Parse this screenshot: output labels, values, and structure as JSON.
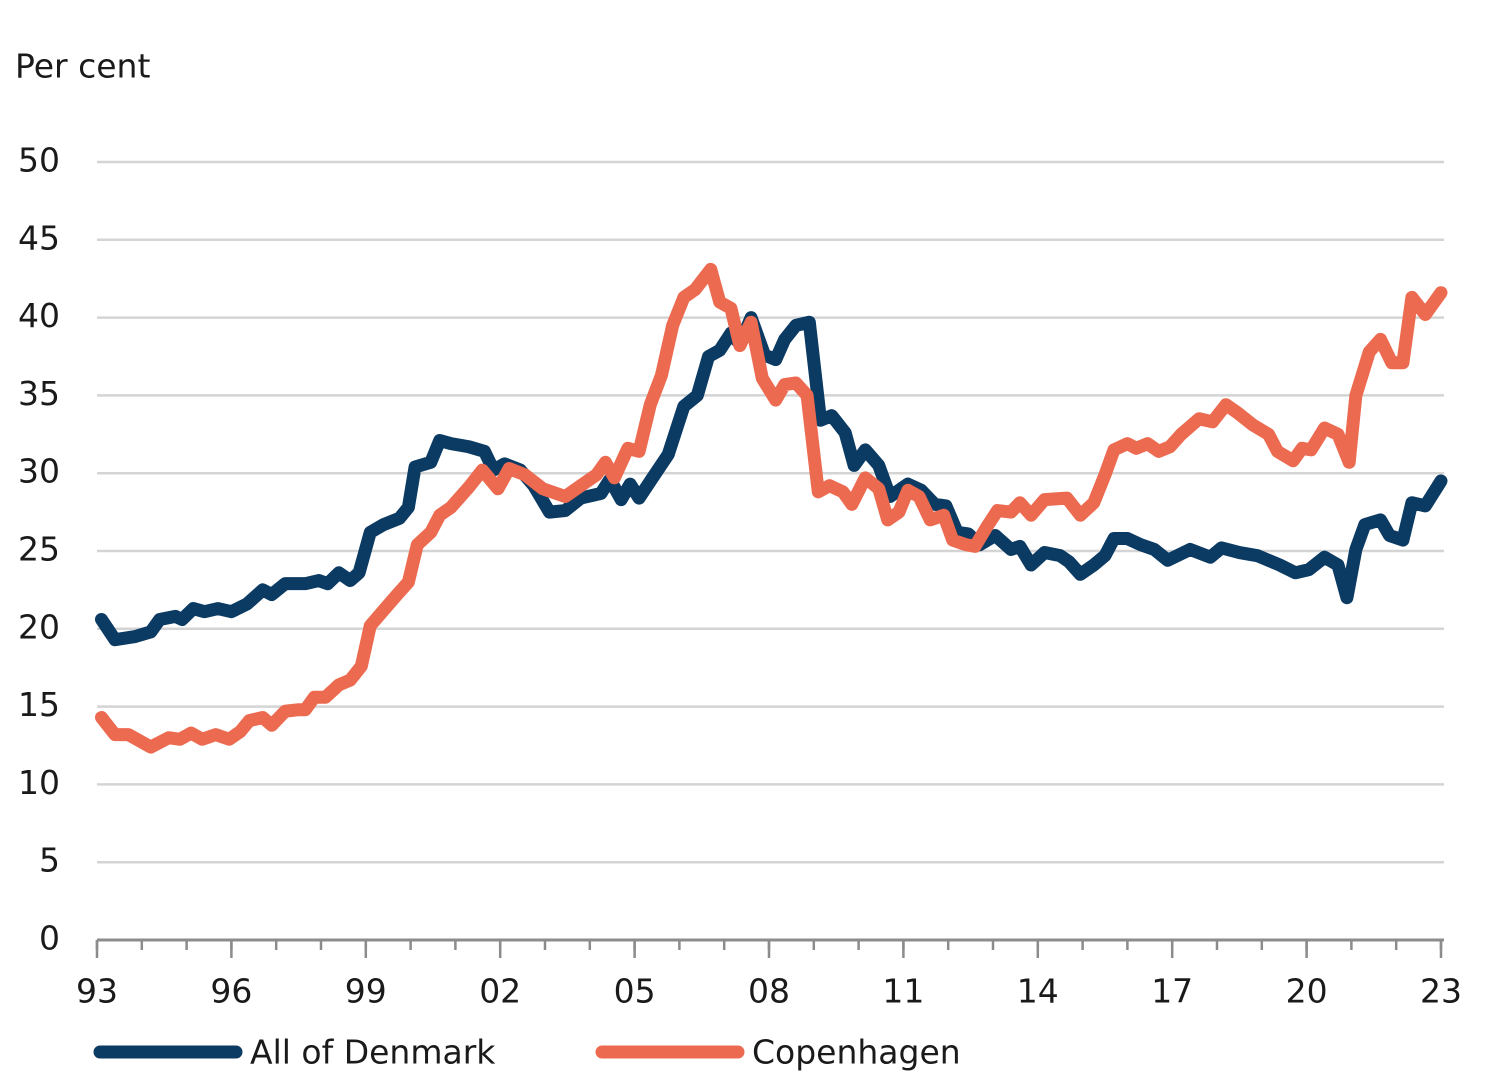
{
  "chart_data": {
    "type": "line",
    "y_axis_label": "Per cent",
    "xlim": [
      1993,
      2023
    ],
    "ylim": [
      0,
      50
    ],
    "yticks": [
      0,
      5,
      10,
      15,
      20,
      25,
      30,
      35,
      40,
      45,
      50
    ],
    "xticks": [
      {
        "value": 1993,
        "label": "93"
      },
      {
        "value": 1996,
        "label": "96"
      },
      {
        "value": 1999,
        "label": "99"
      },
      {
        "value": 2002,
        "label": "02"
      },
      {
        "value": 2005,
        "label": "05"
      },
      {
        "value": 2008,
        "label": "08"
      },
      {
        "value": 2011,
        "label": "11"
      },
      {
        "value": 2014,
        "label": "14"
      },
      {
        "value": 2017,
        "label": "17"
      },
      {
        "value": 2020,
        "label": "20"
      },
      {
        "value": 2023,
        "label": "23"
      }
    ],
    "xminor_ticks": [
      1993,
      1994,
      1995,
      1996,
      1997,
      1998,
      1999,
      2000,
      2001,
      2002,
      2003,
      2004,
      2005,
      2006,
      2007,
      2008,
      2009,
      2010,
      2011,
      2012,
      2013,
      2014,
      2015,
      2016,
      2017,
      2018,
      2019,
      2020,
      2021,
      2022,
      2023
    ],
    "grid": true,
    "legend": "bottom",
    "series": [
      {
        "name": "All of Denmark",
        "color": "#0b3a63",
        "x": [
          1993.1,
          1993.4,
          1993.85,
          1994.2,
          1994.4,
          1994.75,
          1994.9,
          1995.15,
          1995.4,
          1995.7,
          1996.0,
          1996.35,
          1996.7,
          1996.9,
          1997.2,
          1997.65,
          1997.95,
          1998.15,
          1998.4,
          1998.65,
          1998.85,
          1999.1,
          1999.4,
          1999.75,
          1999.95,
          2000.1,
          2000.45,
          2000.65,
          2000.9,
          2001.3,
          2001.65,
          2001.85,
          2002.1,
          2002.45,
          2002.75,
          2003.1,
          2003.45,
          2003.8,
          2004.25,
          2004.45,
          2004.7,
          2004.9,
          2005.1,
          2005.4,
          2005.75,
          2006.1,
          2006.4,
          2006.65,
          2006.9,
          2007.15,
          2007.35,
          2007.6,
          2007.9,
          2008.15,
          2008.35,
          2008.6,
          2008.9,
          2009.15,
          2009.4,
          2009.7,
          2009.9,
          2010.15,
          2010.45,
          2010.7,
          2011.1,
          2011.4,
          2011.7,
          2011.95,
          2012.2,
          2012.45,
          2012.7,
          2013.05,
          2013.4,
          2013.6,
          2013.85,
          2014.15,
          2014.5,
          2014.7,
          2014.95,
          2015.25,
          2015.5,
          2015.7,
          2016.0,
          2016.3,
          2016.6,
          2016.9,
          2017.4,
          2017.85,
          2018.1,
          2018.5,
          2018.9,
          2019.4,
          2019.75,
          2020.05,
          2020.4,
          2020.7,
          2020.9,
          2021.1,
          2021.3,
          2021.65,
          2021.85,
          2022.15,
          2022.35,
          2022.65,
          2023.0
        ],
        "values": [
          20.6,
          19.3,
          19.5,
          19.8,
          20.6,
          20.8,
          20.6,
          21.3,
          21.1,
          21.3,
          21.1,
          21.6,
          22.5,
          22.2,
          22.9,
          22.9,
          23.1,
          22.9,
          23.6,
          23.1,
          23.6,
          26.2,
          26.7,
          27.1,
          27.8,
          30.4,
          30.7,
          32.1,
          31.9,
          31.7,
          31.4,
          30.2,
          30.6,
          30.2,
          29.2,
          27.5,
          27.6,
          28.4,
          28.7,
          29.6,
          28.3,
          29.3,
          28.4,
          29.7,
          31.2,
          34.3,
          35.0,
          37.5,
          37.9,
          39.0,
          38.3,
          40.0,
          37.6,
          37.3,
          38.6,
          39.5,
          39.7,
          33.4,
          33.7,
          32.6,
          30.5,
          31.5,
          30.5,
          28.5,
          29.3,
          28.9,
          28.0,
          27.9,
          26.2,
          26.1,
          25.4,
          26.0,
          25.1,
          25.3,
          24.1,
          24.9,
          24.7,
          24.3,
          23.5,
          24.1,
          24.7,
          25.8,
          25.8,
          25.4,
          25.1,
          24.4,
          25.1,
          24.6,
          25.2,
          24.9,
          24.7,
          24.1,
          23.6,
          23.8,
          24.6,
          24.1,
          22.0,
          25.1,
          26.7,
          27.0,
          26.0,
          25.7,
          28.1,
          27.9,
          29.5
        ]
      },
      {
        "name": "Copenhagen",
        "color": "#ec6a50",
        "x": [
          1993.1,
          1993.4,
          1993.7,
          1994.2,
          1994.6,
          1994.85,
          1995.1,
          1995.35,
          1995.65,
          1995.95,
          1996.2,
          1996.4,
          1996.7,
          1996.9,
          1997.2,
          1997.5,
          1997.65,
          1997.85,
          1998.1,
          1998.4,
          1998.65,
          1998.9,
          1999.1,
          1999.4,
          1999.7,
          1999.95,
          2000.15,
          2000.45,
          2000.65,
          2000.9,
          2001.3,
          2001.6,
          2001.95,
          2002.2,
          2002.55,
          2002.95,
          2003.45,
          2003.8,
          2004.15,
          2004.35,
          2004.55,
          2004.85,
          2005.1,
          2005.35,
          2005.6,
          2005.85,
          2006.1,
          2006.35,
          2006.7,
          2006.9,
          2007.15,
          2007.35,
          2007.6,
          2007.85,
          2008.15,
          2008.35,
          2008.6,
          2008.85,
          2009.1,
          2009.35,
          2009.65,
          2009.85,
          2010.15,
          2010.45,
          2010.65,
          2010.9,
          2011.1,
          2011.35,
          2011.6,
          2011.9,
          2012.1,
          2012.4,
          2012.6,
          2012.85,
          2013.1,
          2013.4,
          2013.6,
          2013.85,
          2014.15,
          2014.65,
          2014.95,
          2015.25,
          2015.5,
          2015.7,
          2016.0,
          2016.2,
          2016.45,
          2016.7,
          2016.95,
          2017.2,
          2017.6,
          2017.9,
          2018.2,
          2018.45,
          2018.8,
          2019.15,
          2019.35,
          2019.7,
          2019.9,
          2020.1,
          2020.4,
          2020.7,
          2020.95,
          2021.1,
          2021.4,
          2021.65,
          2021.9,
          2022.15,
          2022.35,
          2022.65,
          2023.0
        ],
        "values": [
          14.3,
          13.2,
          13.2,
          12.4,
          13.0,
          12.9,
          13.3,
          12.9,
          13.2,
          12.9,
          13.4,
          14.1,
          14.3,
          13.8,
          14.7,
          14.8,
          14.8,
          15.6,
          15.6,
          16.4,
          16.7,
          17.6,
          20.2,
          21.2,
          22.2,
          23.0,
          25.4,
          26.2,
          27.3,
          27.8,
          29.1,
          30.2,
          29.0,
          30.3,
          29.9,
          29.0,
          28.5,
          29.2,
          29.9,
          30.7,
          29.7,
          31.6,
          31.4,
          34.4,
          36.3,
          39.5,
          41.3,
          41.8,
          43.1,
          41.0,
          40.6,
          38.2,
          39.7,
          36.1,
          34.7,
          35.7,
          35.8,
          35.0,
          28.8,
          29.2,
          28.8,
          28.0,
          29.7,
          29.0,
          27.0,
          27.5,
          28.9,
          28.5,
          27.0,
          27.3,
          25.7,
          25.4,
          25.3,
          26.5,
          27.6,
          27.5,
          28.1,
          27.3,
          28.3,
          28.4,
          27.3,
          28.1,
          29.9,
          31.5,
          31.9,
          31.6,
          31.9,
          31.4,
          31.7,
          32.5,
          33.5,
          33.3,
          34.4,
          33.9,
          33.1,
          32.5,
          31.4,
          30.8,
          31.6,
          31.5,
          32.9,
          32.5,
          30.7,
          35.0,
          37.8,
          38.6,
          37.1,
          37.1,
          41.3,
          40.2,
          41.6
        ]
      }
    ]
  }
}
